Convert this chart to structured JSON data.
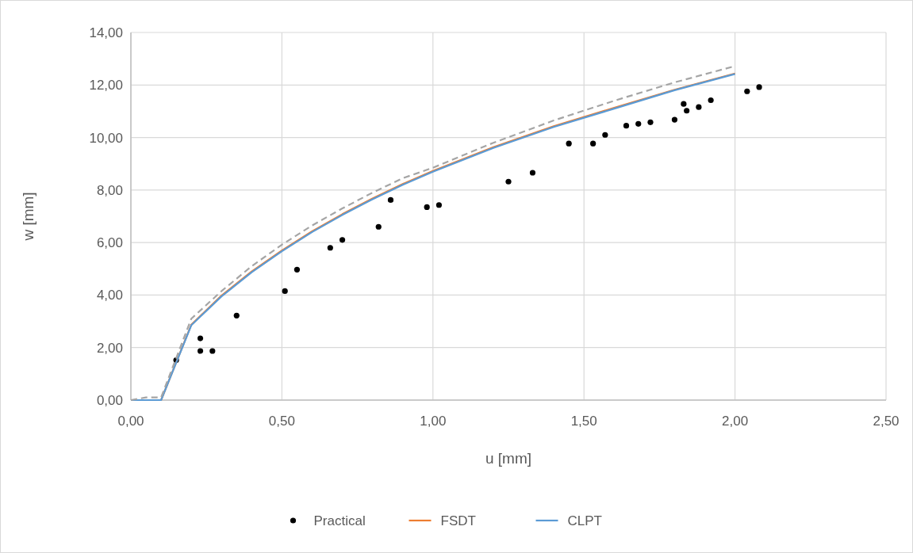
{
  "chart_data": {
    "type": "line",
    "xlabel": "u  [mm]",
    "ylabel": "w [mm]",
    "xlim": [
      0,
      2.5
    ],
    "ylim": [
      0,
      14
    ],
    "xticks": [
      {
        "value": 0,
        "label": "0,00"
      },
      {
        "value": 0.5,
        "label": "0,50"
      },
      {
        "value": 1,
        "label": "1,00"
      },
      {
        "value": 1.5,
        "label": "1,50"
      },
      {
        "value": 2,
        "label": "2,00"
      },
      {
        "value": 2.5,
        "label": "2,50"
      }
    ],
    "yticks": [
      {
        "value": 0,
        "label": "0,00"
      },
      {
        "value": 2,
        "label": "2,00"
      },
      {
        "value": 4,
        "label": "4,00"
      },
      {
        "value": 6,
        "label": "6,00"
      },
      {
        "value": 8,
        "label": "8,00"
      },
      {
        "value": 10,
        "label": "10,00"
      },
      {
        "value": 12,
        "label": "12,00"
      },
      {
        "value": 14,
        "label": "14,00"
      }
    ],
    "grid": true,
    "legend": "bottom",
    "series": [
      {
        "name": "Practical",
        "type": "scatter",
        "marker": "circle",
        "color": "#000000",
        "x": [
          0.15,
          0.23,
          0.23,
          0.27,
          0.35,
          0.51,
          0.55,
          0.66,
          0.7,
          0.82,
          0.86,
          0.98,
          1.02,
          1.25,
          1.33,
          1.45,
          1.53,
          1.57,
          1.64,
          1.68,
          1.72,
          1.8,
          1.83,
          1.84,
          1.88,
          1.92,
          2.04,
          2.08
        ],
        "values": [
          1.52,
          2.35,
          1.87,
          1.87,
          3.22,
          4.15,
          4.97,
          5.8,
          6.1,
          6.6,
          7.62,
          7.35,
          7.43,
          8.32,
          8.66,
          9.77,
          9.77,
          10.1,
          10.45,
          10.52,
          10.58,
          10.68,
          11.28,
          11.02,
          11.16,
          11.42,
          11.76,
          11.92
        ]
      },
      {
        "name": "FSDT",
        "line_style": "solid",
        "color": "#ed7d31",
        "x": [
          0,
          0.1,
          0.2,
          0.3,
          0.4,
          0.5,
          0.6,
          0.7,
          0.8,
          0.9,
          1.0,
          1.2,
          1.4,
          1.6,
          1.8,
          2.0
        ],
        "values": [
          0,
          0,
          2.87,
          3.98,
          4.9,
          5.7,
          6.43,
          7.08,
          7.68,
          8.23,
          8.73,
          9.63,
          10.43,
          11.13,
          11.82,
          12.44
        ]
      },
      {
        "name": "CLPT",
        "line_style": "solid",
        "color": "#5b9bd5",
        "x": [
          0,
          0.1,
          0.2,
          0.3,
          0.4,
          0.5,
          0.6,
          0.7,
          0.8,
          0.9,
          1.0,
          1.2,
          1.4,
          1.6,
          1.8,
          2.0
        ],
        "values": [
          0,
          0,
          2.85,
          3.95,
          4.87,
          5.67,
          6.4,
          7.05,
          7.65,
          8.2,
          8.7,
          9.6,
          10.4,
          11.1,
          11.8,
          12.42
        ]
      },
      {
        "line_style": "dashed",
        "color": "#a5a5a5",
        "x": [
          0,
          0.05,
          0.1,
          0.2,
          0.3,
          0.4,
          0.5,
          0.6,
          0.7,
          0.8,
          0.9,
          1.0,
          1.2,
          1.4,
          1.6,
          1.8,
          2.0
        ],
        "values": [
          0,
          0.1,
          0.1,
          3.1,
          4.15,
          5.1,
          5.92,
          6.65,
          7.3,
          7.9,
          8.45,
          8.85,
          9.8,
          10.65,
          11.4,
          12.1,
          12.72
        ]
      }
    ]
  }
}
